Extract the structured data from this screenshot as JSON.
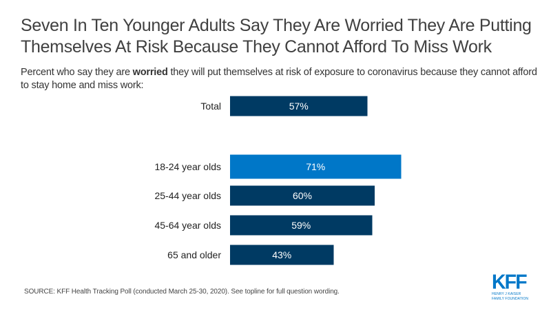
{
  "title": "Seven In Ten Younger Adults Say They Are Worried They Are Putting Themselves At Risk Because They Cannot Afford To Miss Work",
  "subtitle": {
    "prefix": "Percent who say they are ",
    "emphasis": "worried",
    "suffix": " they will put themselves at risk of exposure to coronavirus because they cannot afford to stay home and miss work:"
  },
  "source": "SOURCE: KFF Health Tracking Poll (conducted March 25-30, 2020). See topline for full question wording.",
  "logo": {
    "mark": "KFF",
    "line1": "HENRY J KAISER",
    "line2": "FAMILY FOUNDATION"
  },
  "colors": {
    "primary": "#003a63",
    "highlight": "#0077c8",
    "bar_text": "#ffffff",
    "label_text": "#222222"
  },
  "chart_data": {
    "type": "bar",
    "orientation": "horizontal",
    "title": "Seven In Ten Younger Adults Say They Are Worried They Are Putting Themselves At Risk Because They Cannot Afford To Miss Work",
    "xlabel": "",
    "ylabel": "",
    "xlim": [
      0,
      100
    ],
    "grid": false,
    "categories": [
      "Total",
      "18-24 year olds",
      "25-44 year olds",
      "45-64 year olds",
      "65 and older"
    ],
    "values": [
      57,
      71,
      60,
      59,
      43
    ],
    "data_labels": [
      "57%",
      "71%",
      "60%",
      "59%",
      "43%"
    ],
    "highlighted": [
      "18-24 year olds"
    ],
    "groups": [
      [
        "Total"
      ],
      [
        "18-24 year olds",
        "25-44 year olds",
        "45-64 year olds",
        "65 and older"
      ]
    ]
  }
}
